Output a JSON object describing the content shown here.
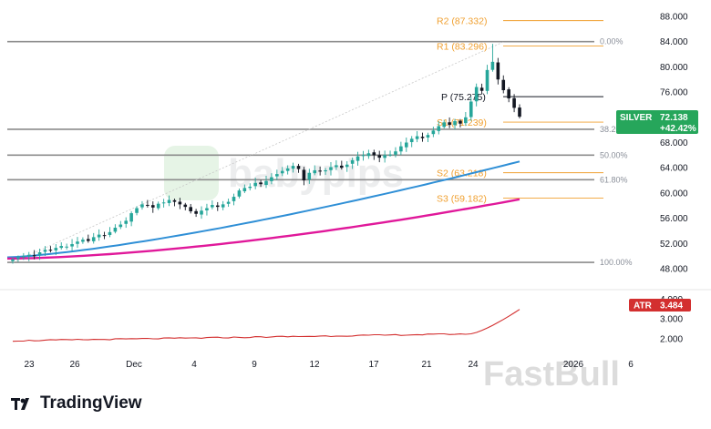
{
  "chart_data": {
    "type": "candlestick",
    "symbol": "SILVER",
    "last_price": "72.138",
    "change": "+42.42%",
    "ylim": [
      47,
      90
    ],
    "y_ticks": [
      "88.000",
      "84.000",
      "80.000",
      "76.000",
      "72.000",
      "68.000",
      "64.000",
      "60.000",
      "56.000",
      "52.000",
      "48.000"
    ],
    "x_ticks": [
      "23",
      "26",
      "Dec",
      "4",
      "9",
      "12",
      "17",
      "21",
      "24",
      "2026",
      "6"
    ],
    "pivots": [
      {
        "label": "R2 (87.332)",
        "value": 87.332
      },
      {
        "label": "R1 (83.296)",
        "value": 83.296
      },
      {
        "label": "P (75.275)",
        "value": 75.275
      },
      {
        "label": "S1 (71.239)",
        "value": 71.239
      },
      {
        "label": "S2 (63.218)",
        "value": 63.218
      },
      {
        "label": "S3 (59.182)",
        "value": 59.182
      }
    ],
    "fib_levels": [
      {
        "label": "0.00%",
        "value": 84.0
      },
      {
        "label": "38.20%",
        "value": 70.1
      },
      {
        "label": "50.00%",
        "value": 66.0
      },
      {
        "label": "61.80%",
        "value": 62.1
      },
      {
        "label": "100.00%",
        "value": 49.0
      }
    ],
    "closes": [
      49.5,
      49.8,
      50.0,
      50.2,
      50.1,
      50.6,
      51.0,
      50.9,
      51.3,
      51.6,
      51.5,
      51.9,
      52.3,
      52.6,
      52.4,
      53.0,
      53.4,
      53.2,
      53.8,
      54.5,
      55.0,
      55.6,
      56.8,
      57.6,
      58.2,
      58.0,
      57.7,
      58.3,
      58.5,
      58.9,
      58.6,
      58.2,
      57.8,
      57.1,
      56.7,
      57.2,
      57.6,
      58.1,
      57.8,
      58.2,
      58.6,
      59.4,
      60.4,
      60.8,
      61.0,
      61.6,
      61.4,
      61.9,
      62.5,
      63.0,
      63.5,
      63.9,
      64.3,
      63.8,
      62.0,
      63.2,
      63.6,
      63.4,
      63.6,
      64.1,
      64.4,
      64.0,
      64.5,
      65.2,
      65.8,
      66.0,
      66.3,
      66.0,
      65.6,
      66.0,
      66.1,
      66.6,
      67.4,
      68.0,
      68.6,
      69.0,
      68.7,
      69.2,
      69.9,
      70.6,
      71.2,
      70.8,
      71.4,
      71.0,
      72.0,
      74.5,
      76.8,
      76.2,
      79.5,
      80.8,
      78.0,
      76.3,
      75.0,
      73.5,
      72.1
    ],
    "ma_blue": {
      "name": "",
      "start": 49.8,
      "end": 65.0
    },
    "ma_pink": {
      "name": "",
      "start": 49.6,
      "end": 59.0
    },
    "atr": {
      "label": "ATR",
      "value": "3.484",
      "y_ticks": [
        "4.000",
        "3.000",
        "2.000"
      ],
      "ylim": [
        1.4,
        4.3
      ]
    }
  },
  "watermark": {
    "center": "babypips",
    "bottom": "FastBull"
  },
  "brand": {
    "name": "TradingView"
  },
  "colors": {
    "up": "#26a69a",
    "down": "#131722",
    "pivot": "#f0a030",
    "blue_ma": "#2f8fd6",
    "pink_ma": "#e0189a",
    "atr": "#d32f2f",
    "badge": "#26a65b"
  }
}
